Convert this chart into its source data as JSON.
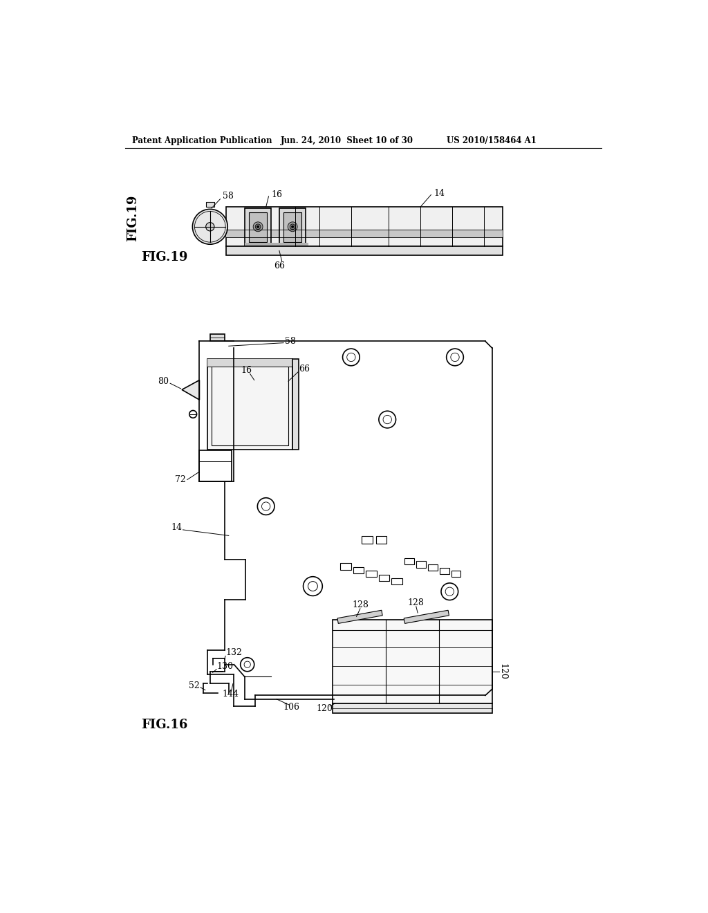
{
  "bg_color": "#ffffff",
  "header_text1": "Patent Application Publication",
  "header_text2": "Jun. 24, 2010  Sheet 10 of 30",
  "header_text3": "US 2010/158464 A1",
  "fig19_label": "FIG.19",
  "fig16_label": "FIG.16",
  "lc": "#000000",
  "lw": 1.2,
  "fs": 9
}
